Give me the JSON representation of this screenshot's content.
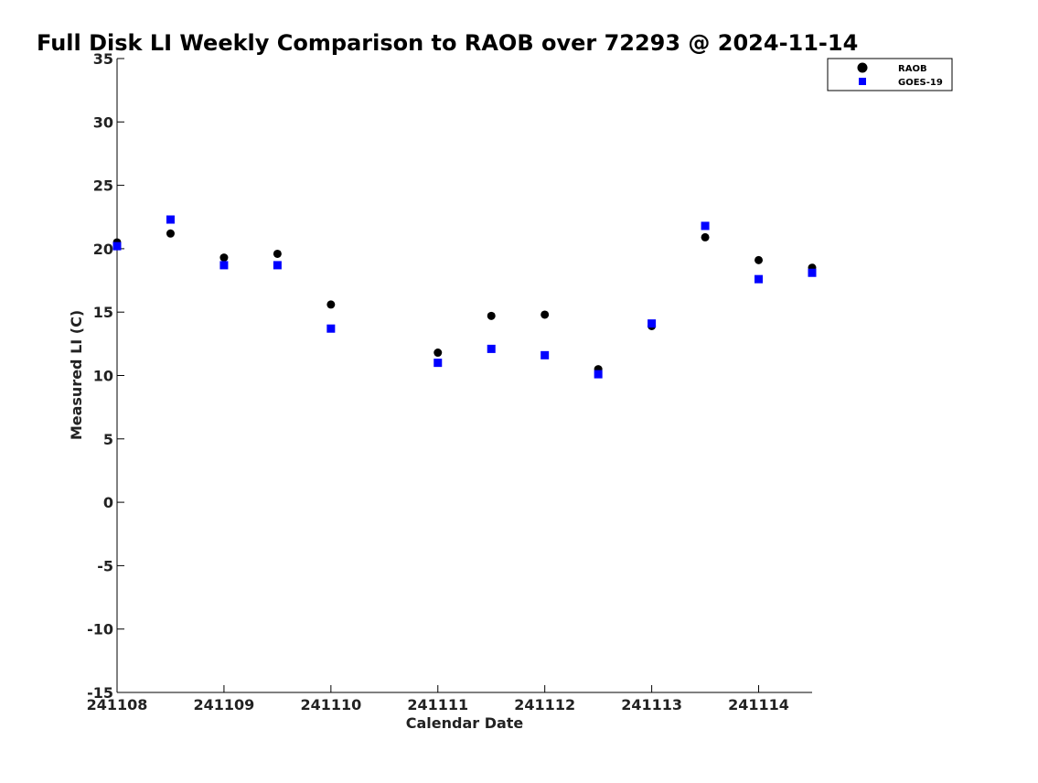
{
  "chart_data": {
    "type": "scatter",
    "title": "Full Disk LI Weekly Comparison to RAOB over 72293 @ 2024-11-14",
    "xlabel": "Calendar Date",
    "ylabel": "Measured LI (C)",
    "xlim": [
      "241108",
      "241114.5"
    ],
    "ylim": [
      -15,
      35
    ],
    "yticks": [
      -15,
      -10,
      -5,
      0,
      5,
      10,
      15,
      20,
      25,
      30,
      35
    ],
    "ytick_labels": [
      "-15",
      "-10",
      "-5",
      "0",
      "5",
      "10",
      "15",
      "20",
      "25",
      "30",
      "35"
    ],
    "xticks": [
      0,
      1,
      2,
      3,
      4,
      5,
      6
    ],
    "xtick_labels": [
      "241108",
      "241109",
      "241110",
      "241111",
      "241112",
      "241113",
      "241114"
    ],
    "grid": false,
    "legend_position": "top-right",
    "series": [
      {
        "name": "RAOB",
        "marker": "circle",
        "color": "#000000",
        "x": [
          0,
          0.5,
          1,
          1.5,
          2,
          3,
          3.5,
          4,
          4.5,
          5,
          5.5,
          6,
          6.5
        ],
        "values": [
          20.5,
          21.2,
          19.3,
          19.6,
          15.6,
          11.8,
          14.7,
          14.8,
          10.5,
          13.9,
          20.9,
          19.1,
          18.5
        ]
      },
      {
        "name": "GOES-19",
        "marker": "square",
        "color": "#0000ff",
        "x": [
          0,
          0.5,
          1,
          1.5,
          2,
          3,
          3.5,
          4,
          4.5,
          5,
          5.5,
          6,
          6.5
        ],
        "values": [
          20.2,
          22.3,
          18.7,
          18.7,
          13.7,
          11.0,
          12.1,
          11.6,
          10.1,
          14.1,
          21.8,
          17.6,
          18.1
        ]
      }
    ]
  }
}
